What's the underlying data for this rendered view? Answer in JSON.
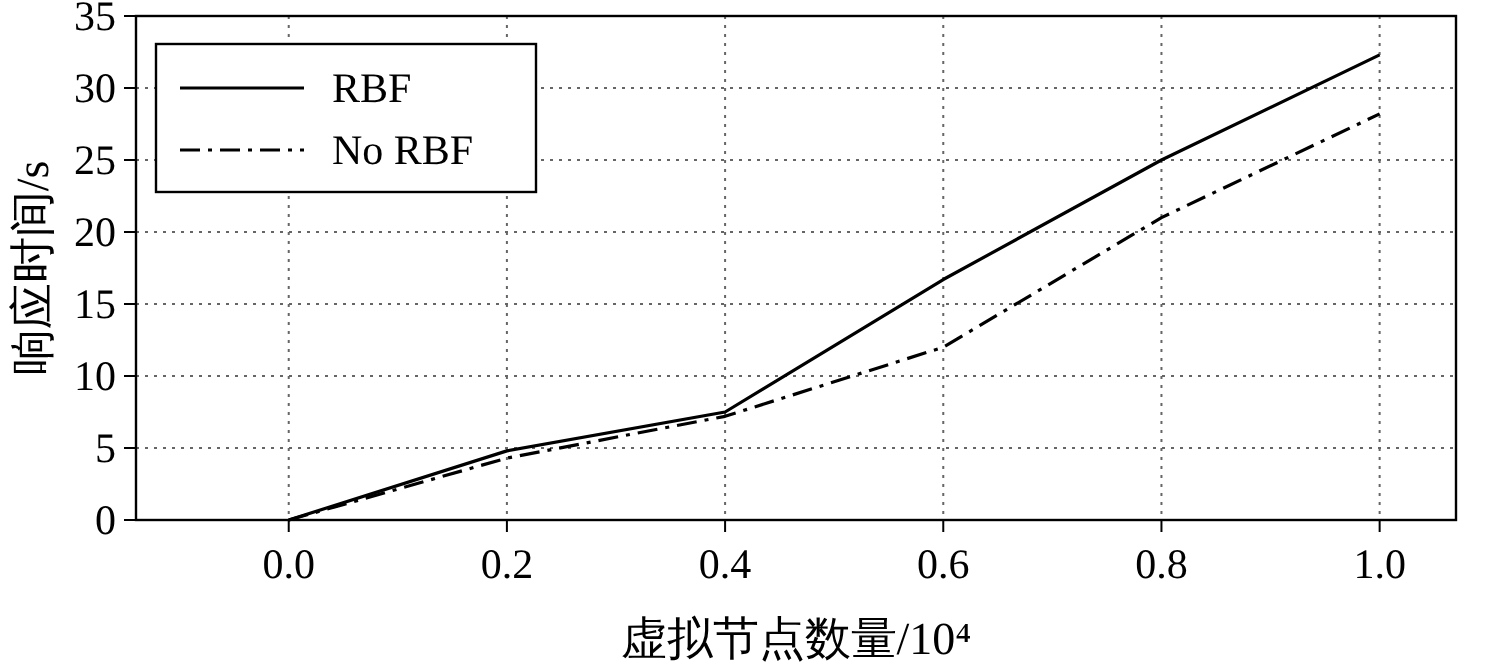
{
  "chart_data": {
    "type": "line",
    "xlabel": "虚拟节点数量/10⁴",
    "ylabel": "响应时间/s",
    "x": [
      0.0,
      0.2,
      0.4,
      0.6,
      0.8,
      1.0
    ],
    "series": [
      {
        "name": "RBF",
        "color": "#000000",
        "line_style": "solid",
        "values": [
          0,
          4.8,
          7.5,
          16.7,
          25,
          32.3
        ]
      },
      {
        "name": "No RBF",
        "color": "#000000",
        "line_style": "dashdot",
        "values": [
          0,
          4.3,
          7.2,
          12,
          21,
          28.2
        ]
      }
    ],
    "xlim": [
      -0.14,
      1.07
    ],
    "xticks": [
      {
        "value": 0,
        "label": "0.0"
      },
      {
        "value": 0.2,
        "label": "0.2"
      },
      {
        "value": 0.4,
        "label": "0.4"
      },
      {
        "value": 0.6,
        "label": "0.6"
      },
      {
        "value": 0.8,
        "label": "0.8"
      },
      {
        "value": 1,
        "label": "1.0"
      }
    ],
    "ylim": [
      0,
      35
    ],
    "yticks": [
      0,
      5,
      10,
      15,
      20,
      25,
      30,
      35
    ],
    "grid": true,
    "legend": "top left"
  }
}
